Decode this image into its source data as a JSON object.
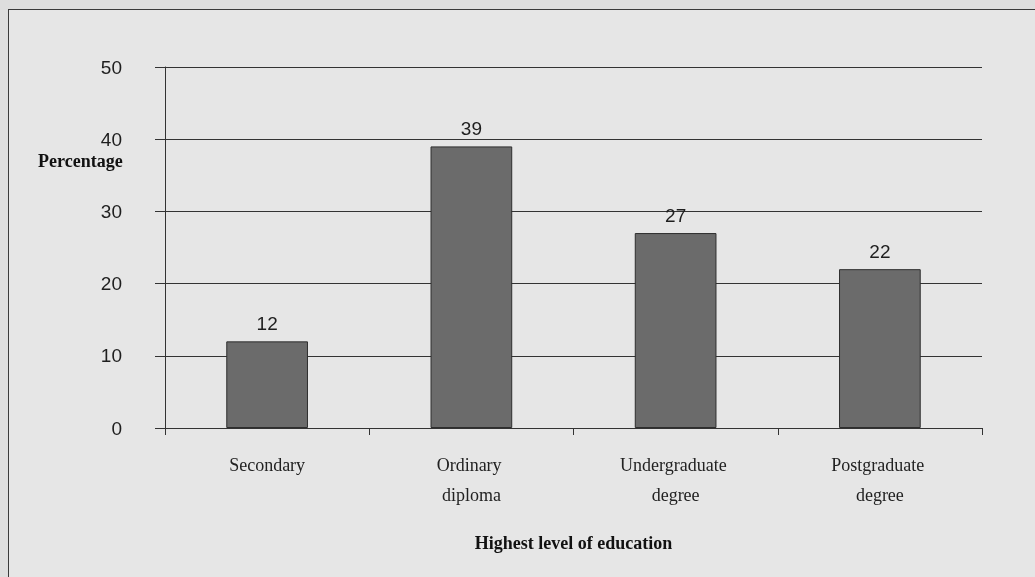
{
  "chart_data": {
    "type": "bar",
    "xlabel": "Highest level of education",
    "ylabel": "Percentage",
    "categories": [
      "Secondary",
      "Ordinary diploma",
      "Undergraduate degree",
      "Postgraduate degree"
    ],
    "values": [
      12,
      39,
      27,
      22
    ],
    "color": "#6b6b6b",
    "ylim": [
      0,
      50
    ],
    "yticks": [
      0,
      10,
      20,
      30,
      40,
      50
    ],
    "grid": "y",
    "data_labels": true
  }
}
